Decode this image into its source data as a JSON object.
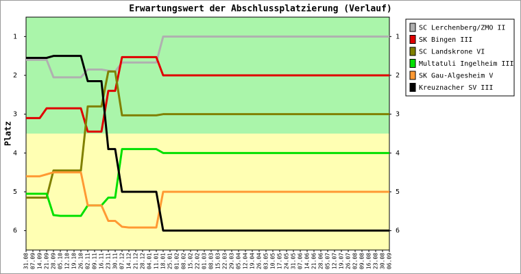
{
  "chart_data": {
    "type": "line",
    "title": "Erwartungswert der Abschlussplatzierung (Verlauf)",
    "y_label": "Platz",
    "categories": [
      "31.08",
      "07.09",
      "14.09",
      "21.09",
      "28.09",
      "05.10",
      "12.10",
      "19.10",
      "26.10",
      "02.11",
      "09.11",
      "16.11",
      "23.11",
      "30.11",
      "07.12",
      "14.12",
      "21.12",
      "28.12",
      "04.01",
      "11.01",
      "18.01",
      "25.01",
      "01.02",
      "08.02",
      "15.02",
      "22.02",
      "01.03",
      "08.03",
      "15.03",
      "22.03",
      "29.03",
      "05.04",
      "12.04",
      "19.04",
      "26.04",
      "03.05",
      "10.05",
      "17.05",
      "24.05",
      "31.05",
      "07.06",
      "14.06",
      "21.06",
      "28.06",
      "05.07",
      "12.07",
      "19.07",
      "26.07",
      "02.08",
      "09.08",
      "16.08",
      "23.08",
      "30.08",
      "06.09"
    ],
    "ylim": [
      6.5,
      0.5
    ],
    "yticks": [
      1,
      2,
      3,
      4,
      5,
      6
    ],
    "inverted": true,
    "right_axis": true,
    "zones": [
      {
        "from": 0.5,
        "to": 3.5,
        "color": "#aaf5aa"
      },
      {
        "from": 3.5,
        "to": 6.5,
        "color": "#ffffb3"
      }
    ],
    "legend": "top-right",
    "series": [
      {
        "name": "SC Lerchenberg/ZMO II",
        "color": "#b0b0b0",
        "values": [
          1.6,
          1.6,
          1.6,
          1.6,
          2.05,
          2.05,
          2.05,
          2.05,
          2.05,
          1.85,
          1.85,
          1.85,
          1.88,
          1.9,
          1.67,
          1.67,
          1.67,
          1.67,
          1.67,
          1.67,
          1,
          1,
          1,
          1,
          1,
          1,
          1,
          1,
          1,
          1,
          1,
          1,
          1,
          1,
          1,
          1,
          1,
          1,
          1,
          1,
          1,
          1,
          1,
          1,
          1,
          1,
          1,
          1,
          1,
          1,
          1,
          1,
          1,
          1
        ]
      },
      {
        "name": "SK Bingen III",
        "color": "#e00000",
        "values": [
          3.1,
          3.1,
          3.1,
          2.85,
          2.85,
          2.85,
          2.85,
          2.85,
          2.85,
          3.45,
          3.45,
          3.45,
          2.4,
          2.4,
          1.53,
          1.53,
          1.53,
          1.53,
          1.53,
          1.53,
          2,
          2,
          2,
          2,
          2,
          2,
          2,
          2,
          2,
          2,
          2,
          2,
          2,
          2,
          2,
          2,
          2,
          2,
          2,
          2,
          2,
          2,
          2,
          2,
          2,
          2,
          2,
          2,
          2,
          2,
          2,
          2,
          2,
          2
        ]
      },
      {
        "name": "SC Landskrone VI",
        "color": "#808000",
        "values": [
          5.15,
          5.15,
          5.15,
          5.15,
          4.45,
          4.45,
          4.45,
          4.45,
          4.45,
          2.8,
          2.8,
          2.8,
          1.9,
          1.9,
          3.03,
          3.03,
          3.03,
          3.03,
          3.03,
          3.03,
          3,
          3,
          3,
          3,
          3,
          3,
          3,
          3,
          3,
          3,
          3,
          3,
          3,
          3,
          3,
          3,
          3,
          3,
          3,
          3,
          3,
          3,
          3,
          3,
          3,
          3,
          3,
          3,
          3,
          3,
          3,
          3,
          3,
          3
        ]
      },
      {
        "name": "Multatuli Ingelheim III",
        "color": "#00e000",
        "values": [
          5.05,
          5.05,
          5.05,
          5.05,
          5.6,
          5.62,
          5.62,
          5.62,
          5.62,
          5.35,
          5.35,
          5.35,
          5.15,
          5.15,
          3.9,
          3.9,
          3.9,
          3.9,
          3.9,
          3.9,
          4,
          4,
          4,
          4,
          4,
          4,
          4,
          4,
          4,
          4,
          4,
          4,
          4,
          4,
          4,
          4,
          4,
          4,
          4,
          4,
          4,
          4,
          4,
          4,
          4,
          4,
          4,
          4,
          4,
          4,
          4,
          4,
          4,
          4
        ]
      },
      {
        "name": "SK Gau-Algesheim V",
        "color": "#ff9933",
        "values": [
          4.6,
          4.6,
          4.6,
          4.55,
          4.5,
          4.5,
          4.5,
          4.5,
          4.5,
          5.35,
          5.35,
          5.35,
          5.75,
          5.75,
          5.9,
          5.92,
          5.92,
          5.92,
          5.92,
          5.92,
          5,
          5,
          5,
          5,
          5,
          5,
          5,
          5,
          5,
          5,
          5,
          5,
          5,
          5,
          5,
          5,
          5,
          5,
          5,
          5,
          5,
          5,
          5,
          5,
          5,
          5,
          5,
          5,
          5,
          5,
          5,
          5,
          5,
          5
        ]
      },
      {
        "name": "Kreuznacher SV III",
        "color": "#000000",
        "values": [
          1.55,
          1.55,
          1.55,
          1.55,
          1.5,
          1.5,
          1.5,
          1.5,
          1.5,
          2.15,
          2.15,
          2.15,
          3.9,
          3.9,
          5,
          5,
          5,
          5,
          5,
          5,
          6,
          6,
          6,
          6,
          6,
          6,
          6,
          6,
          6,
          6,
          6,
          6,
          6,
          6,
          6,
          6,
          6,
          6,
          6,
          6,
          6,
          6,
          6,
          6,
          6,
          6,
          6,
          6,
          6,
          6,
          6,
          6,
          6,
          6
        ]
      }
    ]
  }
}
